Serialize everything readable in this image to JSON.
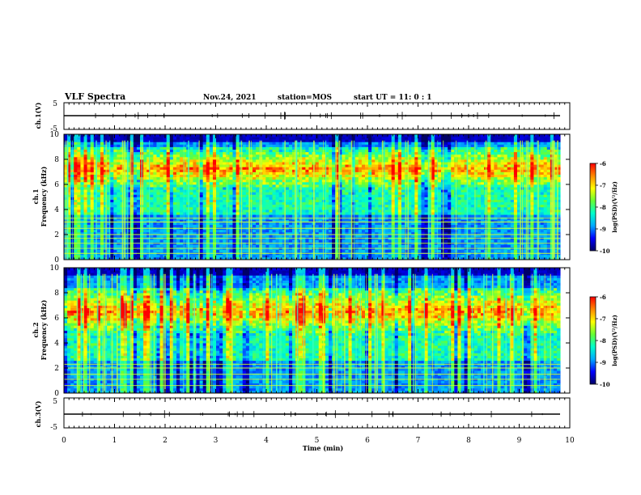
{
  "chart_data": {
    "type": "heatmap",
    "title": "VLF Spectra",
    "header": {
      "date": "Nov.24, 2021",
      "station": "station=MOS",
      "start": "start  UT =  11: 0  : 1"
    },
    "xlabel": "Time  (min)",
    "xlim": [
      0,
      10
    ],
    "x_ticks": [
      "0",
      "1",
      "2",
      "3",
      "4",
      "5",
      "6",
      "7",
      "8",
      "9",
      "10"
    ],
    "panels": [
      {
        "name": "ch.1(V)",
        "kind": "waveform",
        "ylabel": "ch.1(V)",
        "ylim": [
          -5,
          5
        ],
        "y_ticks": [
          "5",
          "-5"
        ]
      },
      {
        "name": "ch.1",
        "kind": "spectrogram",
        "ylabel_line1": "ch.1",
        "ylabel_line2": "Frequency  (kHz)",
        "ylim": [
          0,
          10
        ],
        "y_ticks": [
          "0",
          "2",
          "4",
          "6",
          "8",
          "10"
        ],
        "noise_lines_khz": [
          0.5,
          0.9,
          1.3,
          1.7,
          2.0,
          2.5,
          3.0,
          3.3
        ],
        "intense_band_khz": [
          5.5,
          9.0
        ]
      },
      {
        "name": "ch.2",
        "kind": "spectrogram",
        "ylabel_line1": "ch.2",
        "ylabel_line2": "Frequency  (kHz)",
        "ylim": [
          0,
          10
        ],
        "y_ticks": [
          "0",
          "2",
          "4",
          "6",
          "8",
          "10"
        ],
        "noise_lines_khz": [
          0.6,
          1.1,
          1.5,
          2.0,
          2.3
        ],
        "intense_band_khz": [
          4.5,
          8.5
        ]
      },
      {
        "name": "ch.3(V)",
        "kind": "waveform",
        "ylabel": "ch.3(V)",
        "ylim": [
          -5,
          5
        ],
        "y_ticks": [
          "5",
          "-5"
        ]
      }
    ],
    "colorbar": {
      "label": "log(PSD)(V²/Hz)",
      "range": [
        -10,
        -6
      ],
      "ticks": [
        "-6",
        "-7",
        "-8",
        "-9",
        "-10"
      ],
      "colormap": [
        "#000066",
        "#0000ff",
        "#00aaff",
        "#00ffcc",
        "#66ff33",
        "#ffff00",
        "#ff8800",
        "#ff0000",
        "#ffffff"
      ]
    },
    "colors": {
      "frame": "#000000",
      "background": "#ffffff"
    }
  }
}
